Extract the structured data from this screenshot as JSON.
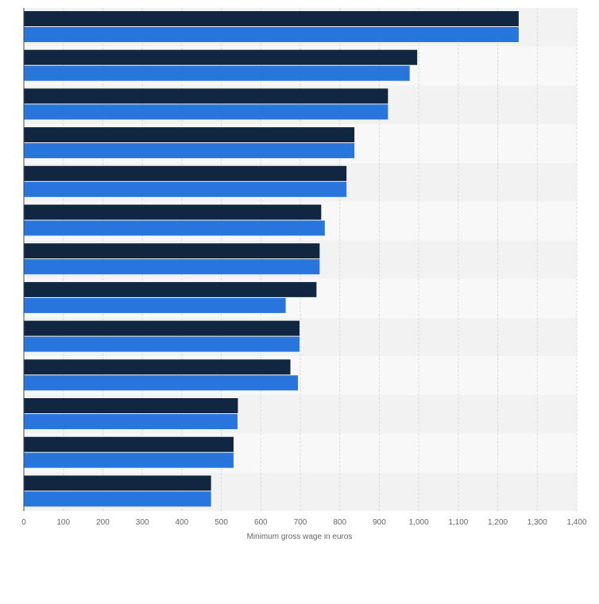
{
  "chart_data": {
    "type": "bar",
    "orientation": "horizontal",
    "title": "",
    "xlabel": "Minimum gross wage in euros",
    "ylabel": "",
    "xlim": [
      0,
      1400
    ],
    "x_ticks": [
      0,
      100,
      200,
      300,
      400,
      500,
      600,
      700,
      800,
      900,
      1000,
      1100,
      1200,
      1300,
      1400
    ],
    "x_tick_labels": [
      "0",
      "100",
      "200",
      "300",
      "400",
      "500",
      "600",
      "700",
      "800",
      "900",
      "1,000",
      "1,100",
      "1,200",
      "1,300",
      "1,400"
    ],
    "grid": true,
    "legend": "none",
    "categories": [
      "",
      "",
      "",
      "",
      "",
      "",
      "",
      "",
      "",
      "",
      "",
      "",
      ""
    ],
    "series": [
      {
        "color": "#0f2741",
        "values": [
          1253,
          996,
          922,
          837,
          817,
          753,
          749,
          741,
          698,
          675,
          542,
          531,
          474
        ]
      },
      {
        "color": "#2876dd",
        "values": [
          1253,
          977,
          922,
          837,
          817,
          762,
          749,
          663,
          698,
          694,
          541,
          531,
          474
        ]
      }
    ],
    "band_colors": [
      "#f2f2f2",
      "#f8f8f8"
    ]
  }
}
